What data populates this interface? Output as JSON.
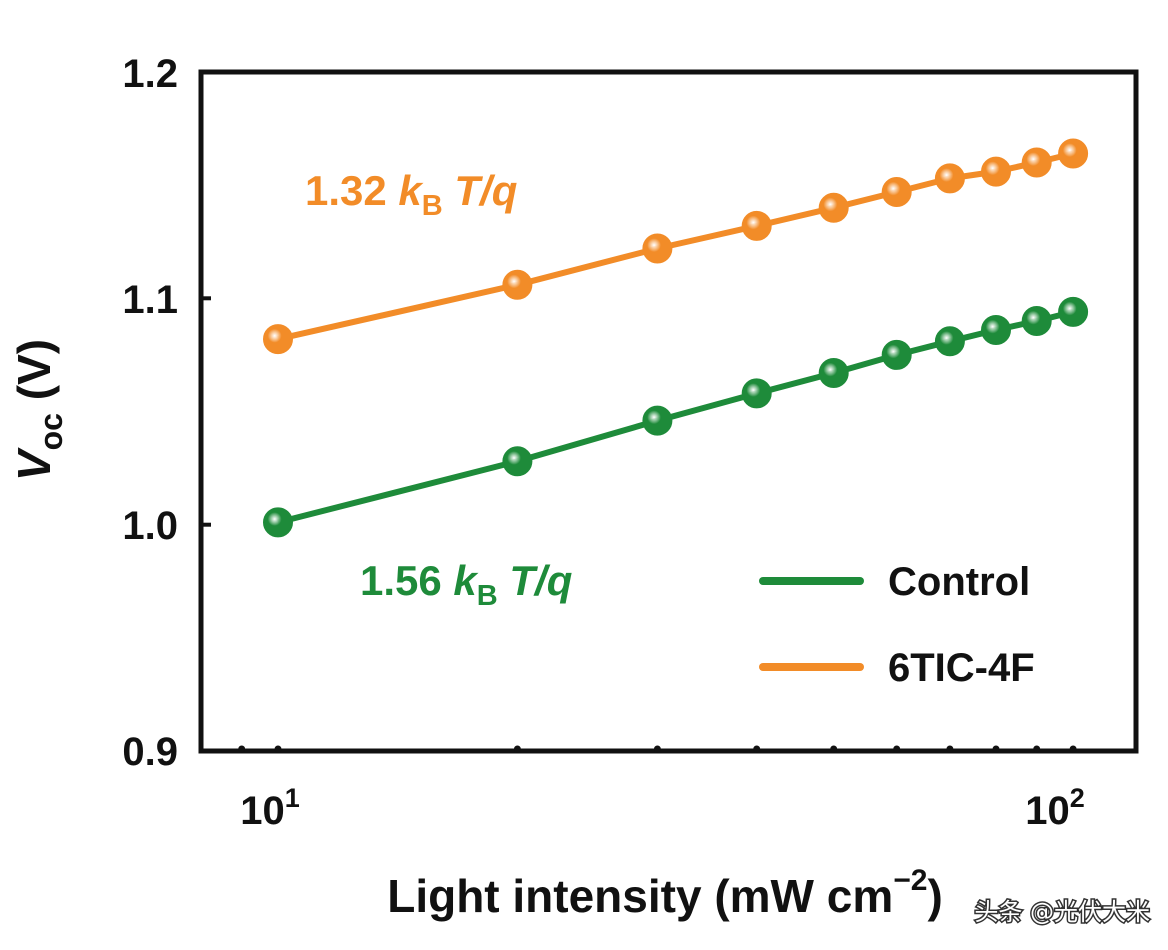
{
  "chart_data": {
    "type": "line",
    "x_scale": "log",
    "xlim": [
      8,
      120
    ],
    "ylim": [
      0.9,
      1.2
    ],
    "x_tick_labels": [
      {
        "base": "10",
        "exp": "1",
        "value": 10
      },
      {
        "base": "10",
        "exp": "2",
        "value": 100
      }
    ],
    "y_ticks": [
      0.9,
      1.0,
      1.1,
      1.2
    ],
    "y_tick_labels": [
      "0.9",
      "1.0",
      "1.1",
      "1.2"
    ],
    "xlabel": "Light intensity (mW cm",
    "xlabel_sup": "−2",
    "xlabel_end": ")",
    "ylabel_main": "V",
    "ylabel_sub": "oc",
    "ylabel_unit": " (V)",
    "x": [
      10,
      20,
      30,
      40,
      50,
      60,
      70,
      80,
      90,
      100
    ],
    "series": [
      {
        "name": "Control",
        "color": "#1e8b3a",
        "values": [
          1.001,
          1.028,
          1.046,
          1.058,
          1.067,
          1.075,
          1.081,
          1.086,
          1.09,
          1.094
        ]
      },
      {
        "name": "6TIC-4F",
        "color": "#f28c28",
        "values": [
          1.082,
          1.106,
          1.122,
          1.132,
          1.14,
          1.147,
          1.153,
          1.156,
          1.16,
          1.164
        ]
      }
    ],
    "annotations": [
      {
        "series": "6TIC-4F",
        "num": "1.32",
        "k": "k",
        "sub": "B",
        "rest": "T/q",
        "color": "#f28c28"
      },
      {
        "series": "Control",
        "num": "1.56",
        "k": "k",
        "sub": "B",
        "rest": "T/q",
        "color": "#1e8b3a"
      }
    ],
    "legend_position": "lower-right",
    "grid": false
  },
  "watermark": "头条 @光伏大米"
}
